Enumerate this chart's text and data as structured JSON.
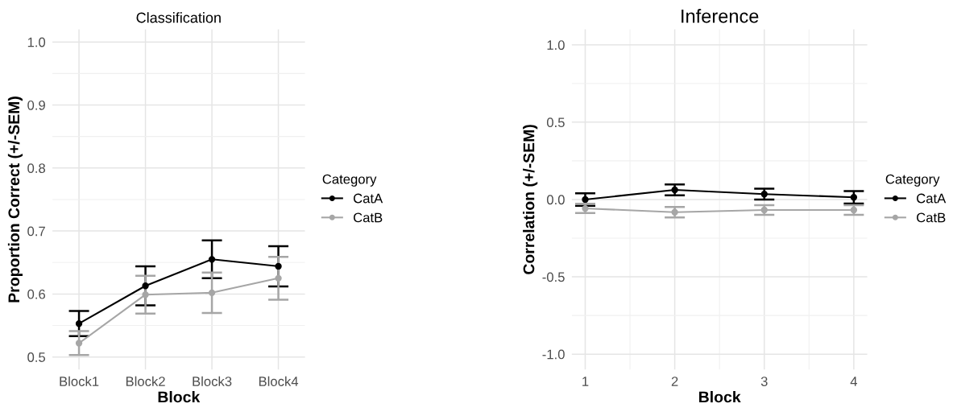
{
  "chart_data": [
    {
      "type": "line",
      "title": "Classification",
      "xlabel": "Block",
      "ylabel": "Proportion Correct (+/-SEM)",
      "legend_title": "Category",
      "legend": "right",
      "marker": "circle",
      "line_style": "solid",
      "grid": true,
      "categories": [
        "Block1",
        "Block2",
        "Block3",
        "Block4"
      ],
      "ylim": [
        0.48,
        1.02
      ],
      "yticks": [
        0.5,
        0.6,
        0.7,
        0.8,
        0.9,
        {
          "value": 1,
          "label": "1.0"
        }
      ],
      "series": [
        {
          "name": "CatA",
          "color": "#000000",
          "values": [
            0.553,
            0.613,
            0.655,
            0.644
          ],
          "errors": [
            0.02,
            0.031,
            0.03,
            0.032
          ]
        },
        {
          "name": "CatB",
          "color": "#a6a6a6",
          "values": [
            0.522,
            0.599,
            0.602,
            0.625
          ],
          "errors": [
            0.019,
            0.03,
            0.032,
            0.034
          ]
        }
      ]
    },
    {
      "type": "line",
      "title": "Inference",
      "xlabel": "Block",
      "ylabel": "Correlation (+/-SEM)",
      "legend_title": "Category",
      "legend": "right",
      "marker": "circle",
      "line_style": "solid",
      "grid": true,
      "x": [
        1,
        2,
        3,
        4
      ],
      "xlim": [
        0.85,
        4.15
      ],
      "xticks": [
        1,
        2,
        3,
        4
      ],
      "ylim": [
        -1.1,
        1.1
      ],
      "yticks": [
        {
          "value": -1,
          "label": "-1.0"
        },
        -0.5,
        {
          "value": 0,
          "label": "0.0"
        },
        0.5,
        {
          "value": 1,
          "label": "1.0"
        }
      ],
      "series": [
        {
          "name": "CatA",
          "color": "#000000",
          "values": [
            0.0,
            0.062,
            0.035,
            0.014
          ],
          "errors": [
            0.04,
            0.035,
            0.035,
            0.04
          ]
        },
        {
          "name": "CatB",
          "color": "#a6a6a6",
          "values": [
            -0.058,
            -0.082,
            -0.068,
            -0.068
          ],
          "errors": [
            0.03,
            0.034,
            0.031,
            0.031
          ]
        }
      ]
    }
  ]
}
